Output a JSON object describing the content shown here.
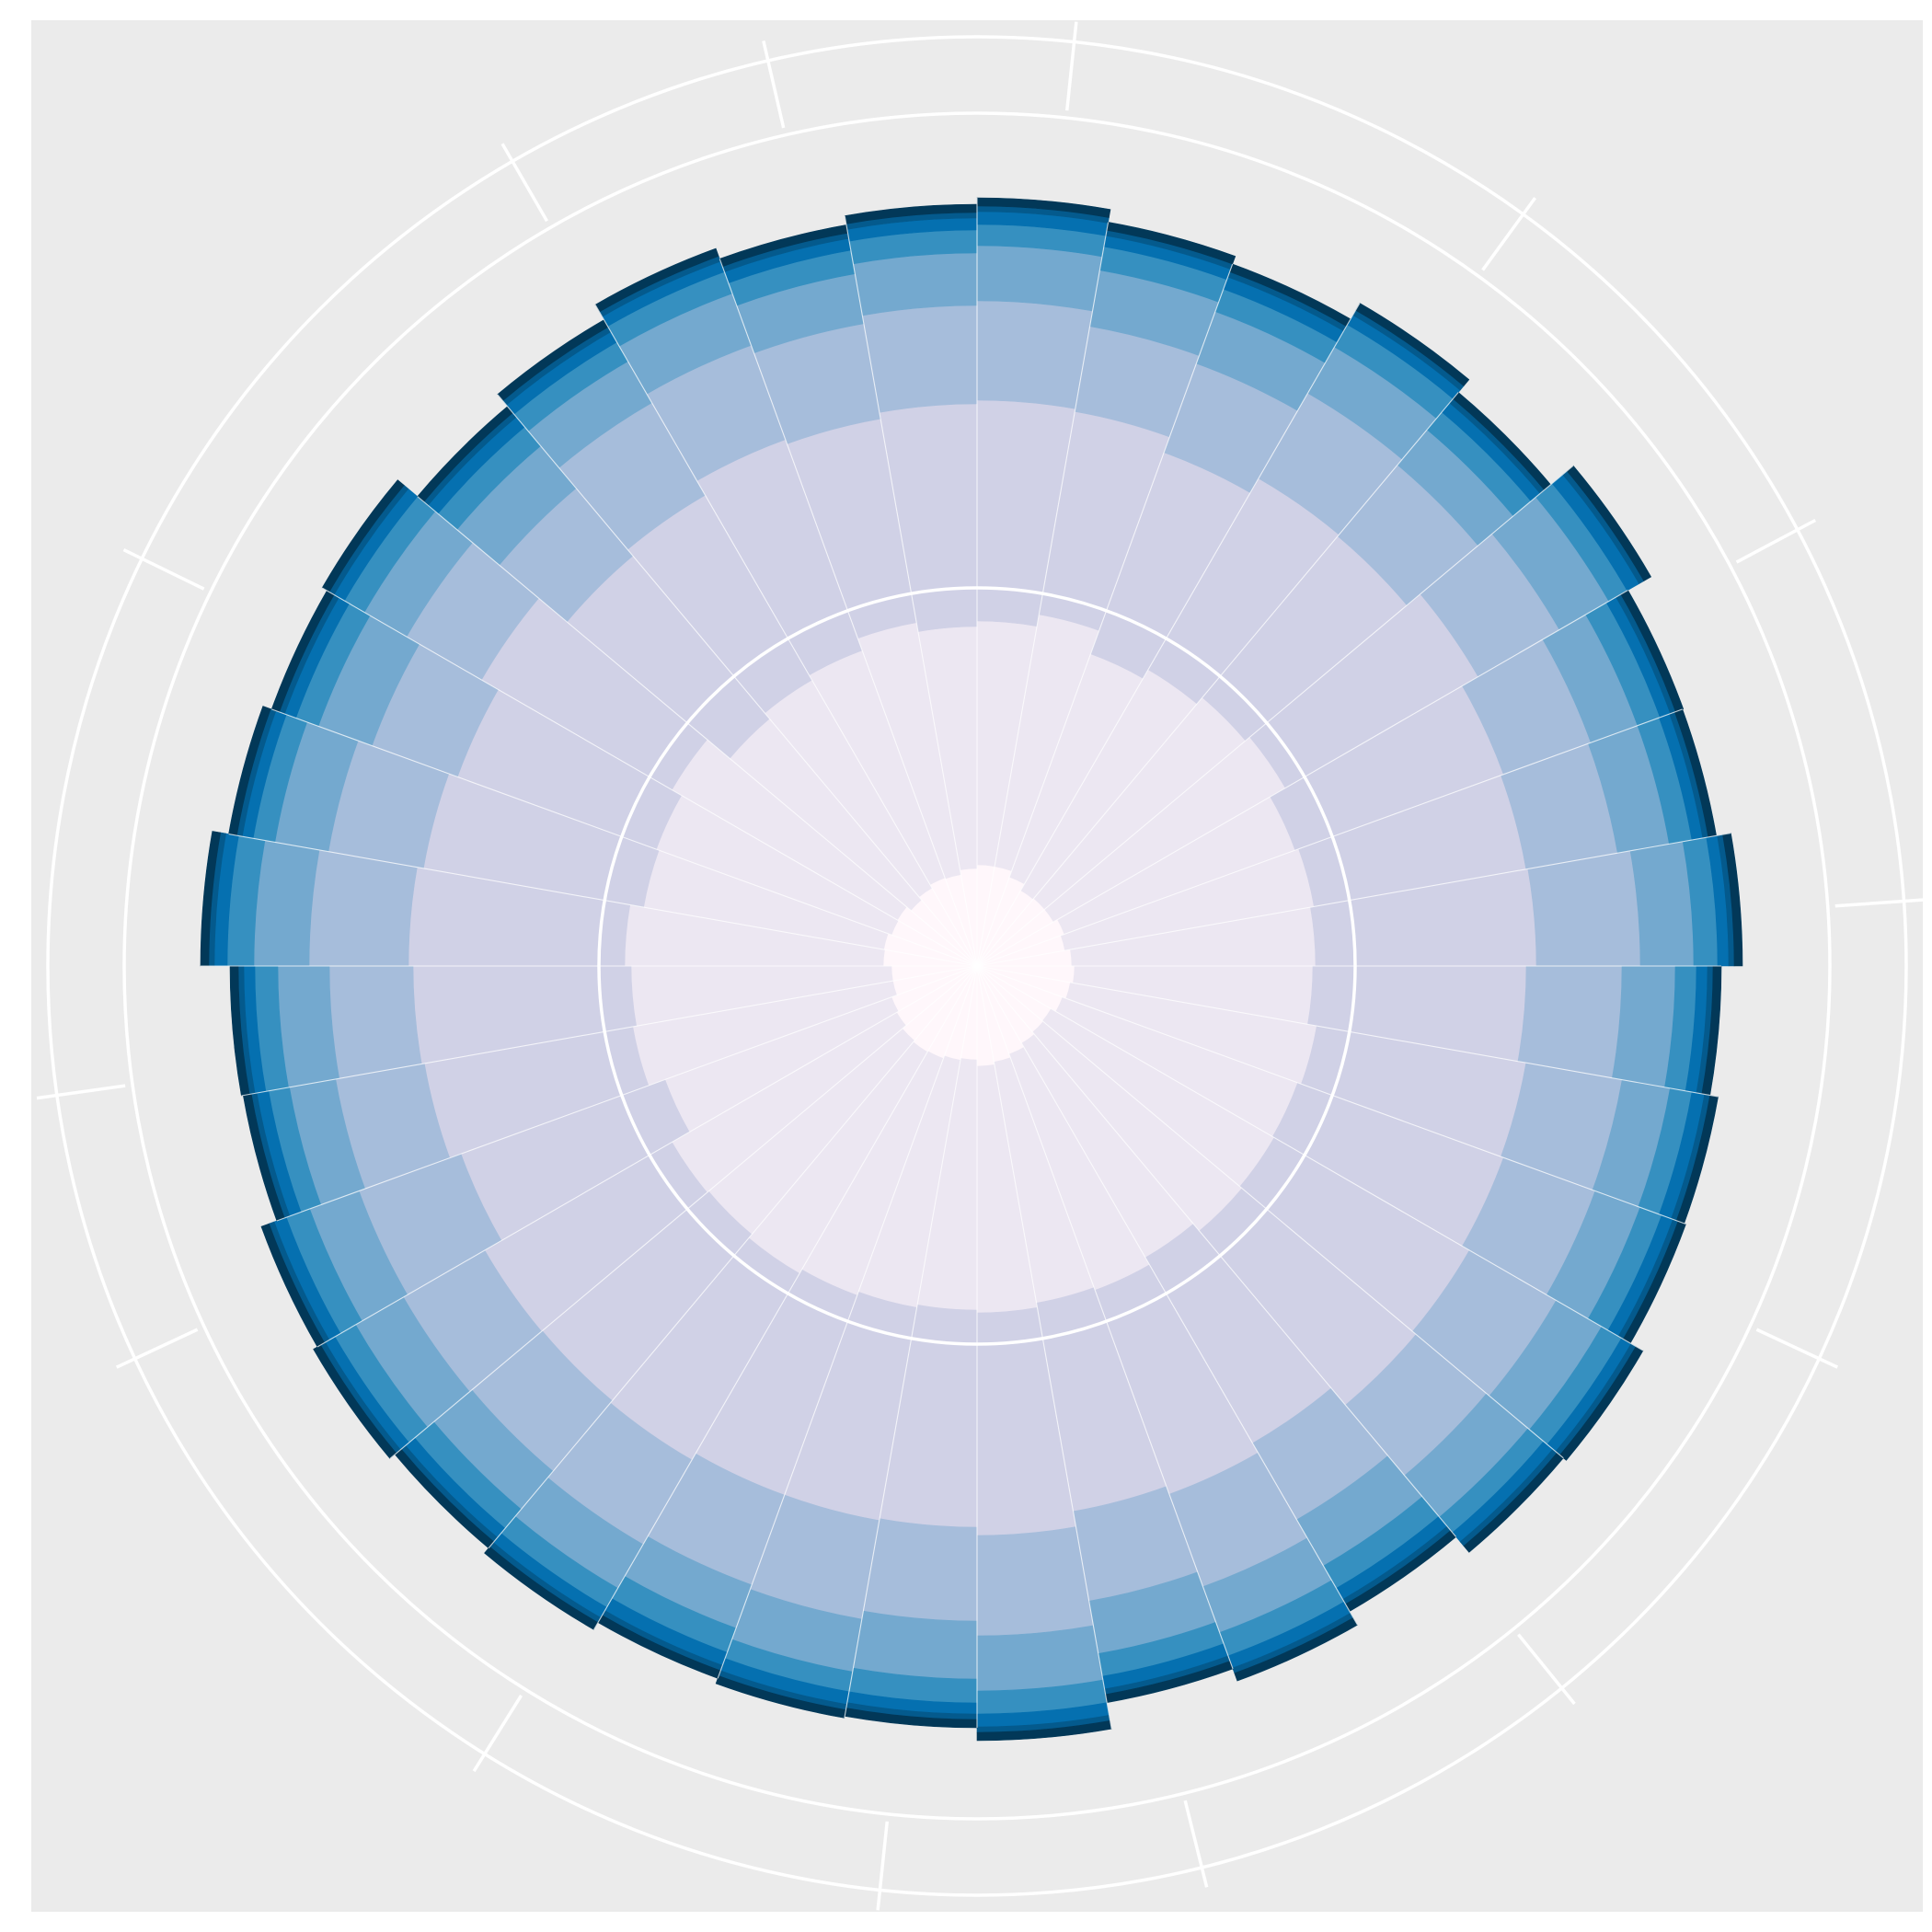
{
  "chart_data": {
    "type": "stacked-polar-bar",
    "title": "",
    "xlabel": "",
    "ylabel": "",
    "legend": "none",
    "grid": true,
    "panel_background": "#EBEBEB",
    "grid_color": "#FFFFFF",
    "sector_count": 36,
    "series": [
      {
        "color": "#FFF7FB",
        "values": [
          110,
          110,
          103,
          95,
          96,
          96,
          101,
          97,
          103,
          106,
          103,
          99,
          93,
          94,
          97,
          102,
          106,
          109,
          102,
          104,
          107,
          108,
          106,
          101,
          99,
          93,
          93,
          102,
          103,
          99,
          100,
          94,
          98,
          102,
          101,
          106
        ]
      },
      {
        "color": "#ECE7F2",
        "values": [
          265,
          278,
          258,
          277,
          285,
          291,
          267,
          275,
          265,
          259,
          272,
          272,
          280,
          282,
          269,
          273,
          266,
          268,
          272,
          273,
          274,
          278,
          275,
          282,
          262,
          287,
          283,
          281,
          265,
          272,
          283,
          257,
          261,
          263,
          278,
          263
        ]
      },
      {
        "color": "#D0D1E6",
        "values": [
          240,
          224,
          233,
          240,
          229,
          242,
          241,
          234,
          240,
          232,
          231,
          238,
          245,
          247,
          233,
          236,
          230,
          242,
          236,
          235,
          231,
          234,
          236,
          235,
          236,
          230,
          237,
          235,
          243,
          230,
          239,
          231,
          232,
          244,
          225,
          242
        ]
      },
      {
        "color": "#A6BDDB",
        "values": [
          108,
          94,
          103,
          107,
          101,
          102,
          101,
          101,
          113,
          104,
          106,
          106,
          109,
          100,
          96,
          107,
          99,
          109,
          102,
          109,
          104,
          106,
          100,
          102,
          118,
          98,
          91,
          108,
          105,
          99,
          94,
          96,
          116,
          109,
          105,
          107
        ]
      },
      {
        "color": "#74A9CF",
        "values": [
          60,
          62,
          60,
          58,
          50,
          62,
          54,
          57,
          58,
          58,
          53,
          52,
          57,
          59,
          58,
          53,
          58,
          60,
          63,
          58,
          50,
          55,
          54,
          60,
          57,
          51,
          56,
          60,
          59,
          62,
          53,
          60,
          52,
          60,
          55,
          57
        ]
      },
      {
        "color": "#3690C0",
        "values": [
          23,
          26,
          26,
          28,
          25,
          23,
          26,
          25,
          26,
          23,
          24,
          25,
          25,
          22,
          28,
          27,
          25,
          25,
          26,
          22,
          28,
          24,
          27,
          26,
          27,
          23,
          25,
          29,
          24,
          26,
          25,
          27,
          24,
          25,
          26,
          25
        ]
      },
      {
        "color": "#0570B0",
        "values": [
          14,
          12,
          14,
          12,
          13,
          15,
          12,
          12,
          12,
          12,
          14,
          13,
          12,
          13,
          14,
          14,
          14,
          14,
          12,
          14,
          15,
          13,
          13,
          12,
          14,
          13,
          12,
          14,
          12,
          13,
          13,
          14,
          13,
          12,
          13,
          13
        ]
      },
      {
        "color": "#045A8D",
        "values": [
          6,
          6,
          6,
          6,
          6,
          6,
          6,
          6,
          6,
          6,
          6,
          6,
          6,
          6,
          6,
          6,
          6,
          6,
          6,
          6,
          6,
          6,
          6,
          6,
          6,
          6,
          6,
          6,
          6,
          6,
          6,
          6,
          6,
          6,
          6,
          6
        ]
      },
      {
        "color": "#023858",
        "values": [
          9,
          9,
          9,
          9,
          9,
          9,
          9,
          9,
          9,
          9,
          9,
          9,
          9,
          9,
          9,
          9,
          9,
          9,
          9,
          9,
          9,
          9,
          9,
          9,
          9,
          9,
          9,
          9,
          9,
          9,
          9,
          9,
          9,
          9,
          9,
          9
        ]
      }
    ]
  }
}
